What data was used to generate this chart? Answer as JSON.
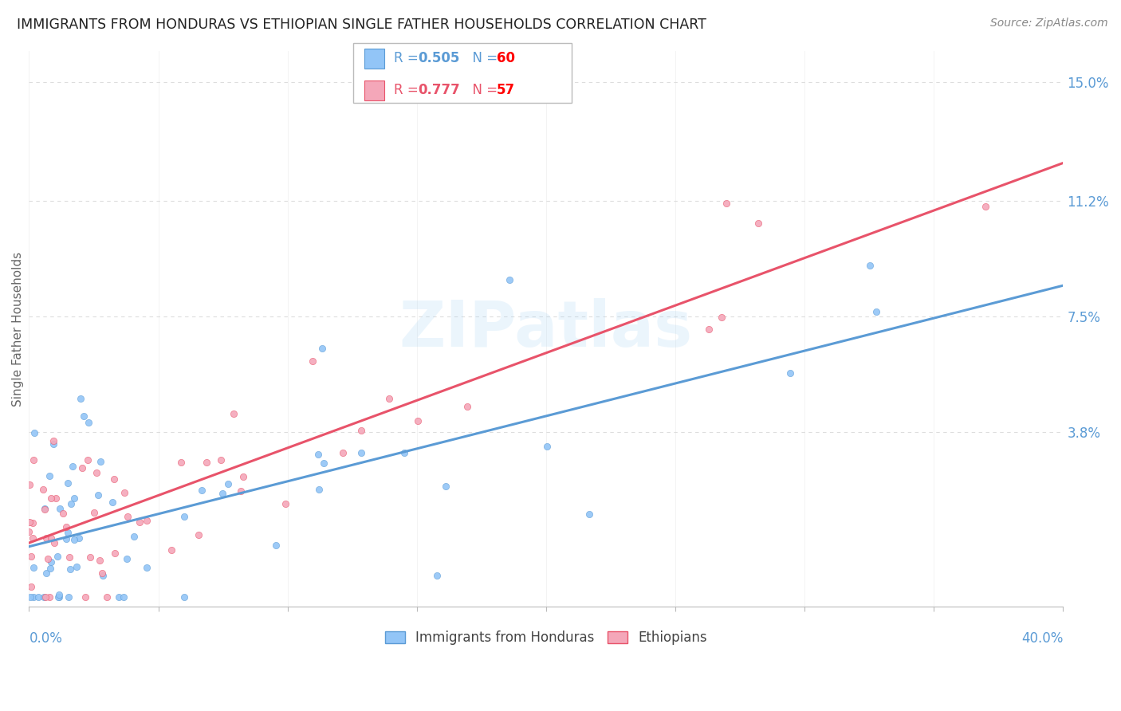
{
  "title": "IMMIGRANTS FROM HONDURAS VS ETHIOPIAN SINGLE FATHER HOUSEHOLDS CORRELATION CHART",
  "source": "Source: ZipAtlas.com",
  "ylabel": "Single Father Households",
  "series1_label": "Immigrants from Honduras",
  "series1_color": "#92C5F7",
  "series1_line_color": "#5B9BD5",
  "series1_R": 0.505,
  "series1_N": 60,
  "series2_label": "Ethiopians",
  "series2_color": "#F4A7B9",
  "series2_line_color": "#E8536A",
  "series2_R": 0.777,
  "series2_N": 57,
  "watermark": "ZIPatlas",
  "background_color": "#FFFFFF",
  "grid_color": "#DDDDDD",
  "title_color": "#222222",
  "axis_label_color": "#5B9BD5",
  "xlim": [
    0.0,
    0.4
  ],
  "ylim": [
    -0.018,
    0.16
  ],
  "ytick_vals": [
    0.038,
    0.075,
    0.112,
    0.15
  ],
  "ytick_labels": [
    "3.8%",
    "7.5%",
    "11.2%",
    "15.0%"
  ]
}
